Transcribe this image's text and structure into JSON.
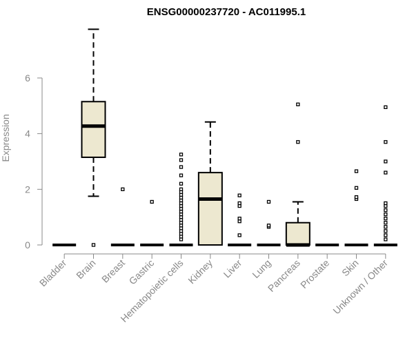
{
  "chart_data": {
    "type": "boxplot",
    "title": "ENSG00000237720 - AC011995.1",
    "xlabel": "",
    "ylabel": "Expression",
    "ylim": [
      0,
      7.8
    ],
    "yticks": [
      0,
      2,
      4,
      6
    ],
    "grid": false,
    "legend": "none",
    "box_color": "#EDE8D0",
    "categories": [
      "Bladder",
      "Brain",
      "Breast",
      "Gastric",
      "Hematopoietic cells",
      "Kidney",
      "Liver",
      "Lung",
      "Pancreas",
      "Prostate",
      "Skin",
      "Unknown / Other"
    ],
    "boxes": [
      {
        "category": "Bladder",
        "whisker_low": 0,
        "q1": 0,
        "median": 0,
        "q3": 0,
        "whisker_high": 0,
        "outliers": []
      },
      {
        "category": "Brain",
        "whisker_low": 1.75,
        "q1": 3.15,
        "median": 4.27,
        "q3": 5.15,
        "whisker_high": 7.75,
        "outliers": [
          0
        ]
      },
      {
        "category": "Breast",
        "whisker_low": 0,
        "q1": 0,
        "median": 0,
        "q3": 0,
        "whisker_high": 0,
        "outliers": [
          2.0
        ]
      },
      {
        "category": "Gastric",
        "whisker_low": 0,
        "q1": 0,
        "median": 0,
        "q3": 0,
        "whisker_high": 0,
        "outliers": [
          1.55
        ]
      },
      {
        "category": "Hematopoietic cells",
        "whisker_low": 0,
        "q1": 0,
        "median": 0,
        "q3": 0,
        "whisker_high": 0,
        "outliers": [
          0.2,
          0.3,
          0.4,
          0.5,
          0.6,
          0.7,
          0.8,
          0.9,
          1.0,
          1.1,
          1.2,
          1.3,
          1.4,
          1.5,
          1.6,
          1.7,
          1.8,
          1.9,
          2.0,
          2.2,
          2.5,
          2.8,
          3.05,
          3.25
        ]
      },
      {
        "category": "Kidney",
        "whisker_low": 0,
        "q1": 0,
        "median": 1.65,
        "q3": 2.6,
        "whisker_high": 4.42,
        "outliers": []
      },
      {
        "category": "Liver",
        "whisker_low": 0,
        "q1": 0,
        "median": 0,
        "q3": 0,
        "whisker_high": 0,
        "outliers": [
          0.35,
          0.85,
          0.95,
          1.4,
          1.5,
          1.78
        ]
      },
      {
        "category": "Lung",
        "whisker_low": 0,
        "q1": 0,
        "median": 0,
        "q3": 0,
        "whisker_high": 0,
        "outliers": [
          0.65,
          0.7,
          1.55
        ]
      },
      {
        "category": "Pancreas",
        "whisker_low": 0,
        "q1": 0,
        "median": 0,
        "q3": 0.8,
        "whisker_high": 1.55,
        "outliers": [
          3.7,
          5.05
        ]
      },
      {
        "category": "Prostate",
        "whisker_low": 0,
        "q1": 0,
        "median": 0,
        "q3": 0,
        "whisker_high": 0,
        "outliers": []
      },
      {
        "category": "Skin",
        "whisker_low": 0,
        "q1": 0,
        "median": 0,
        "q3": 0,
        "whisker_high": 0,
        "outliers": [
          1.65,
          1.72,
          2.05,
          2.65
        ]
      },
      {
        "category": "Unknown / Other",
        "whisker_low": 0,
        "q1": 0,
        "median": 0,
        "q3": 0,
        "whisker_high": 0,
        "outliers": [
          0.2,
          0.35,
          0.5,
          0.65,
          0.8,
          0.95,
          1.1,
          1.25,
          1.4,
          1.5,
          2.6,
          3.0,
          3.7,
          4.95
        ]
      }
    ]
  }
}
